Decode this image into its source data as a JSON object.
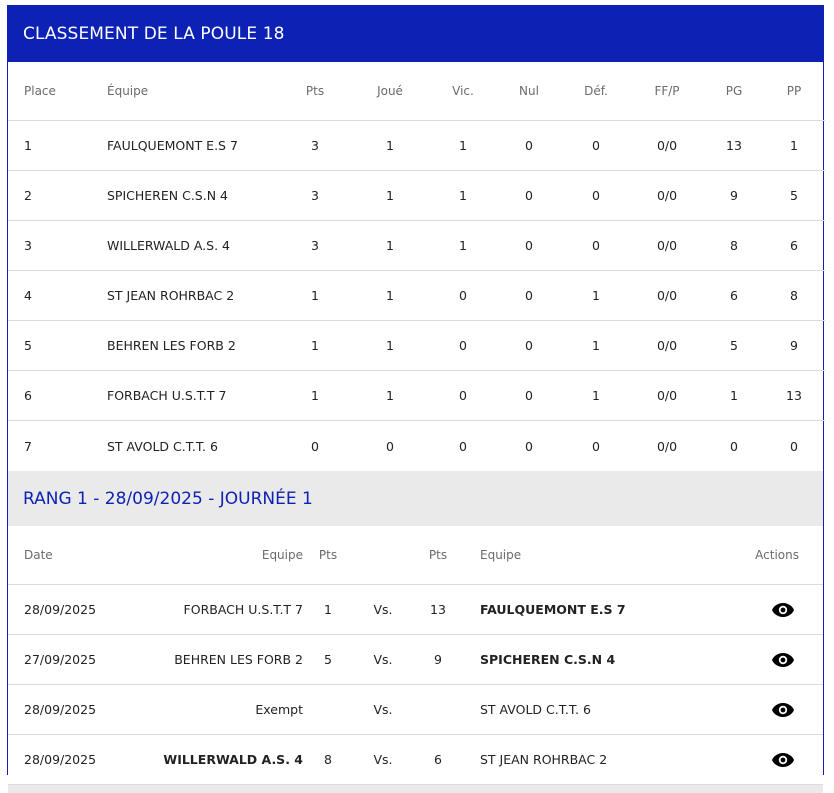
{
  "ranking": {
    "title": "CLASSEMENT DE LA POULE 18",
    "columns": [
      "Place",
      "Équipe",
      "Pts",
      "Joué",
      "Vic.",
      "Nul",
      "Déf.",
      "FF/P",
      "PG",
      "PP"
    ],
    "rows": [
      [
        "1",
        "FAULQUEMONT E.S 7",
        "3",
        "1",
        "1",
        "0",
        "0",
        "0/0",
        "13",
        "1"
      ],
      [
        "2",
        "SPICHEREN C.S.N 4",
        "3",
        "1",
        "1",
        "0",
        "0",
        "0/0",
        "9",
        "5"
      ],
      [
        "3",
        "WILLERWALD A.S. 4",
        "3",
        "1",
        "1",
        "0",
        "0",
        "0/0",
        "8",
        "6"
      ],
      [
        "4",
        "ST JEAN ROHRBAC 2",
        "1",
        "1",
        "0",
        "0",
        "1",
        "0/0",
        "6",
        "8"
      ],
      [
        "5",
        "BEHREN LES FORB 2",
        "1",
        "1",
        "0",
        "0",
        "1",
        "0/0",
        "5",
        "9"
      ],
      [
        "6",
        "FORBACH U.S.T.T 7",
        "1",
        "1",
        "0",
        "0",
        "1",
        "0/0",
        "1",
        "13"
      ],
      [
        "7",
        "ST AVOLD C.T.T. 6",
        "0",
        "0",
        "0",
        "0",
        "0",
        "0/0",
        "0",
        "0"
      ]
    ]
  },
  "round": {
    "title": "RANG 1 - 28/09/2025 - JOURNÉE 1",
    "columns": {
      "date": "Date",
      "home_team": "Equipe",
      "home_pts": "Pts",
      "away_pts": "Pts",
      "away_team": "Equipe",
      "actions": "Actions"
    },
    "matches": [
      {
        "date": "28/09/2025",
        "home": "FORBACH U.S.T.T 7",
        "home_pts": "1",
        "vs": "Vs.",
        "away_pts": "13",
        "away": "FAULQUEMONT E.S 7",
        "winner": "away",
        "action_icon": "eye-icon"
      },
      {
        "date": "27/09/2025",
        "home": "BEHREN LES FORB 2",
        "home_pts": "5",
        "vs": "Vs.",
        "away_pts": "9",
        "away": "SPICHEREN C.S.N 4",
        "winner": "away",
        "action_icon": "eye-icon"
      },
      {
        "date": "28/09/2025",
        "home": "Exempt",
        "home_pts": "",
        "vs": "Vs.",
        "away_pts": "",
        "away": "ST AVOLD C.T.T. 6",
        "winner": "none",
        "action_icon": "eye-icon"
      },
      {
        "date": "28/09/2025",
        "home": "WILLERWALD A.S. 4",
        "home_pts": "8",
        "vs": "Vs.",
        "away_pts": "6",
        "away": "ST JEAN ROHRBAC 2",
        "winner": "home",
        "action_icon": "eye-icon"
      }
    ]
  },
  "colors": {
    "accent": "#0d22b4",
    "section_bg": "#eaeaea"
  }
}
